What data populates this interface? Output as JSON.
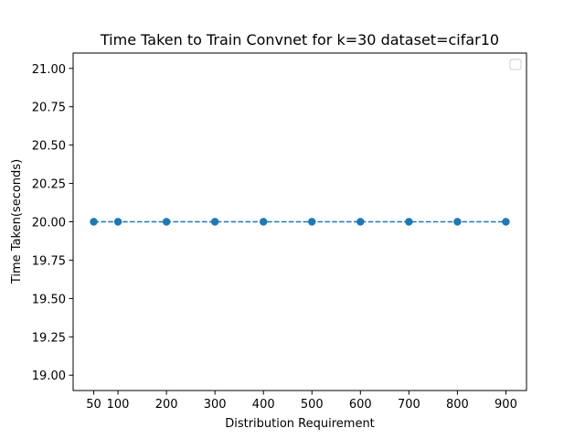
{
  "chart_data": {
    "type": "line",
    "title": "Time Taken to Train Convnet for k=30 dataset=cifar10",
    "xlabel": "Distribution Requirement",
    "ylabel": "Time Taken(seconds)",
    "x": [
      50,
      100,
      200,
      300,
      400,
      500,
      600,
      700,
      800,
      900
    ],
    "series": [
      {
        "values": [
          20,
          20,
          20,
          20,
          20,
          20,
          20,
          20,
          20,
          20
        ],
        "color": "#1f77b4",
        "line_style": "dashed",
        "marker": "circle"
      }
    ],
    "x_ticks": [
      "50",
      "100",
      "200",
      "300",
      "400",
      "500",
      "600",
      "700",
      "800",
      "900"
    ],
    "y_ticks": [
      "19.00",
      "19.25",
      "19.50",
      "19.75",
      "20.00",
      "20.25",
      "20.50",
      "20.75",
      "21.00"
    ],
    "xlim": [
      7.5,
      942.5
    ],
    "ylim": [
      18.9,
      21.1
    ],
    "grid": false,
    "legend": "upper right (empty)"
  }
}
